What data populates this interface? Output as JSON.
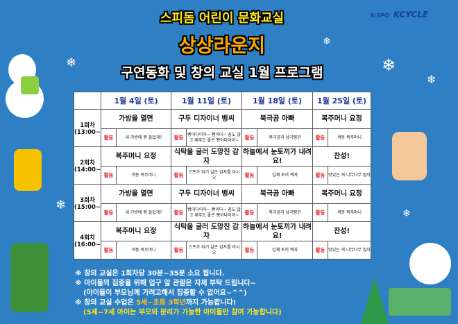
{
  "header": {
    "subtitle": "스피돔 어린이 문화교실",
    "title": "상상라운지",
    "program": "구연동화 및 창의 교실 1월 프로그램",
    "logo_left": "K-SPO",
    "logo_right": "KCYCLE"
  },
  "schedule": {
    "dates": [
      "1월 4일 (토)",
      "1월 11일 (토)",
      "1월 18일 (토)",
      "1월 25일 (토)"
    ],
    "activity_label": "활동",
    "sessions": [
      {
        "name": "1회차",
        "time": "(13:00~",
        "titles": [
          "가방을 열면",
          "구두 디자이너 뱅씨",
          "북극곰 아빠",
          "복주머니 요정"
        ],
        "activities": [
          "내 가방에 뭐 들었게?",
          "빵이다이아~ 빵이다~ 꿈도 않고 재주도 좋은 빵이다이아~",
          "북극곰과 남극펭귄",
          "색동 복주머니"
        ]
      },
      {
        "name": "2회차",
        "time": "(14:00~",
        "titles": [
          "복주머니 요정",
          "식탁을 굴러 도망친 감자",
          "하늘에서 눈토끼가 내려요!",
          "찬성!"
        ],
        "activities": [
          "색동 복주머니",
          "스프가 되기 싫은 감자를 아시오",
          "입체 토끼 액자",
          "맛있는 게 나무나무 많아"
        ]
      },
      {
        "name": "3회차",
        "time": "(15:00~",
        "titles": [
          "가방을 열면",
          "구두 디자이너 뱅씨",
          "북극곰 아빠",
          "복주머니 요정"
        ],
        "activities": [
          "내 가방에 뭐 들었게?",
          "빵이다이아~ 빵이다~ 꿈도 않고 재주도 좋은 빵이다이아~",
          "북극곰과 남극펭귄",
          "색동 복주머니"
        ]
      },
      {
        "name": "4회차",
        "time": "(16:00~",
        "titles": [
          "복주머니 요정",
          "식탁을 굴러 도망친 감자",
          "하늘에서 눈토끼가 내려요!",
          "찬성!"
        ],
        "activities": [
          "색동 복주머니",
          "스프가 되기 싫은 감자를 아시오",
          "입체 토끼 액자",
          "맛있는 게 나무나무 많아"
        ]
      }
    ]
  },
  "notes": {
    "n1": "※ 창의 교실은 1회차당 30분~35분 소요 됩니다.",
    "n2": "※ 아이들의 집중을 위해 입구 앞 관람은 자제 부탁 드립니다~",
    "n2b": "(아이들이 부모님께 가려고해서 집중할 수 없어요~^^)",
    "n3a": "※ 창의 교실 수업은 ",
    "n3hl": "5세~초등 3학년",
    "n3b": "까지 가능합니다!",
    "n4": "(5세~7세 아이는 부모와 분리가 가능한 아이들만 참여 가능합니다)"
  },
  "colors": {
    "background": "#2e7fc3",
    "date": "#1a3795",
    "activity_tag": "#e8262b",
    "highlight": "#ffc21a"
  }
}
